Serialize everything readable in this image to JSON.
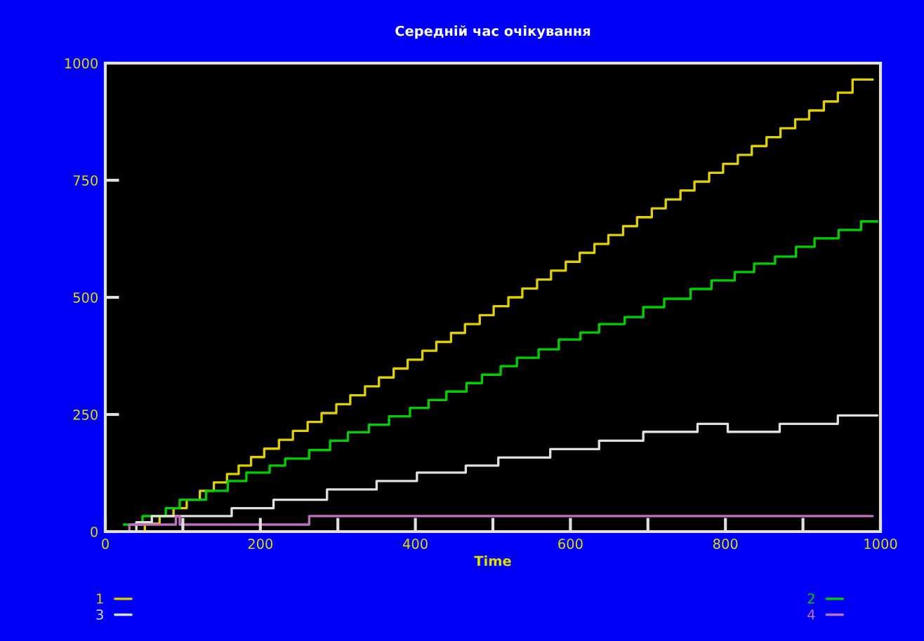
{
  "chart_data": {
    "type": "step",
    "title": "Середній час очікування",
    "xlabel": "Time",
    "xlim": [
      0,
      1000
    ],
    "ylim": [
      0,
      1000
    ],
    "xticks": [
      0,
      {
        "value": 100,
        "label": null
      },
      200,
      {
        "value": 300,
        "label": null
      },
      400,
      {
        "value": 500,
        "label": null
      },
      600,
      {
        "value": 700,
        "label": null
      },
      800,
      {
        "value": 900,
        "label": null
      },
      1000
    ],
    "yticks": [
      0,
      250,
      500,
      750,
      1000
    ],
    "grid": false,
    "legend": "bottom",
    "line_style": "solid",
    "marker": "none",
    "series": [
      {
        "name": "1",
        "color": "#e0d000",
        "x": [
          25,
          51,
          70,
          88,
          105,
          122,
          140,
          157,
          172,
          188,
          205,
          224,
          242,
          261,
          279,
          298,
          316,
          335,
          353,
          372,
          390,
          409,
          427,
          446,
          464,
          483,
          501,
          520,
          538,
          557,
          575,
          594,
          612,
          631,
          649,
          668,
          686,
          705,
          723,
          742,
          760,
          779,
          797,
          816,
          834,
          853,
          871,
          890,
          908,
          927,
          945,
          964,
          990
        ],
        "values": [
          0,
          17,
          33,
          50,
          68,
          87,
          105,
          123,
          141,
          159,
          177,
          196,
          215,
          234,
          253,
          272,
          291,
          310,
          329,
          348,
          367,
          386,
          405,
          424,
          443,
          462,
          481,
          500,
          519,
          538,
          557,
          576,
          595,
          614,
          633,
          652,
          671,
          690,
          709,
          728,
          747,
          766,
          785,
          804,
          823,
          842,
          861,
          880,
          899,
          918,
          937,
          965,
          965
        ]
      },
      {
        "name": "2",
        "color": "#00d000",
        "x": [
          24,
          48,
          78,
          96,
          130,
          158,
          182,
          212,
          232,
          263,
          290,
          313,
          340,
          366,
          393,
          417,
          440,
          466,
          486,
          510,
          531,
          559,
          585,
          613,
          637,
          670,
          694,
          721,
          755,
          782,
          812,
          837,
          864,
          891,
          915,
          946,
          975,
          996
        ],
        "values": [
          15,
          33,
          50,
          68,
          87,
          108,
          126,
          141,
          156,
          174,
          194,
          212,
          228,
          246,
          264,
          281,
          299,
          317,
          335,
          353,
          371,
          389,
          410,
          425,
          443,
          458,
          479,
          497,
          518,
          536,
          554,
          572,
          587,
          608,
          626,
          644,
          662,
          662
        ]
      },
      {
        "name": "3",
        "color": "#e0e0e0",
        "x": [
          30,
          40,
          60,
          163,
          217,
          286,
          350,
          402,
          465,
          507,
          574,
          637,
          694,
          764,
          803,
          870,
          945,
          996
        ],
        "values": [
          0,
          20,
          33,
          50,
          68,
          90,
          108,
          126,
          141,
          158,
          176,
          194,
          213,
          230,
          213,
          230,
          248,
          248
        ]
      },
      {
        "name": "4",
        "color": "#c070c0",
        "x": [
          10,
          31,
          91,
          96,
          263,
          990
        ],
        "values": [
          0,
          15,
          33,
          15,
          33,
          33
        ]
      }
    ]
  }
}
